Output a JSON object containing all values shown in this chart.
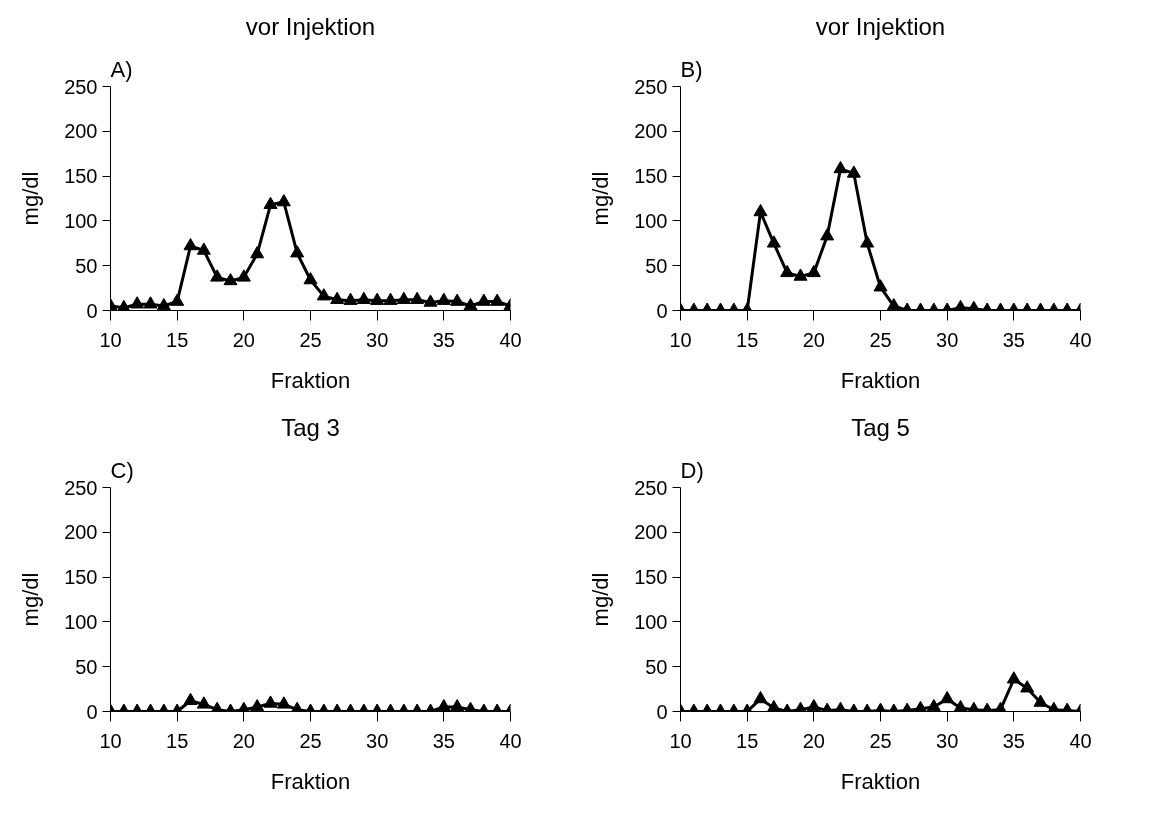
{
  "chart_data": [
    {
      "type": "line",
      "title": "vor Injektion",
      "annotations": [
        "A)"
      ],
      "xlabel": "Fraktion",
      "ylabel": "mg/dl",
      "marker": "triangle",
      "line_style": "solid",
      "color": "#000000",
      "xlim": [
        10,
        40
      ],
      "ylim": [
        0,
        250
      ],
      "xticks": [
        10,
        15,
        20,
        25,
        30,
        35,
        40
      ],
      "yticks": [
        0,
        50,
        100,
        150,
        200,
        250
      ],
      "x": [
        10,
        11,
        12,
        13,
        14,
        15,
        16,
        17,
        18,
        19,
        20,
        21,
        22,
        23,
        24,
        25,
        26,
        27,
        28,
        29,
        30,
        31,
        32,
        33,
        34,
        35,
        36,
        37,
        38,
        39,
        40
      ],
      "values": [
        5,
        3,
        7,
        7,
        5,
        10,
        72,
        67,
        37,
        33,
        37,
        63,
        118,
        121,
        64,
        34,
        16,
        12,
        11,
        12,
        11,
        11,
        12,
        12,
        9,
        11,
        10,
        5,
        10,
        10,
        5
      ]
    },
    {
      "type": "line",
      "title": "vor Injektion",
      "annotations": [
        "B)"
      ],
      "xlabel": "Fraktion",
      "ylabel": "mg/dl",
      "marker": "triangle",
      "line_style": "solid",
      "color": "#000000",
      "xlim": [
        10,
        40
      ],
      "ylim": [
        0,
        250
      ],
      "xticks": [
        10,
        15,
        20,
        25,
        30,
        35,
        40
      ],
      "yticks": [
        0,
        50,
        100,
        150,
        200,
        250
      ],
      "x": [
        10,
        11,
        12,
        13,
        14,
        15,
        16,
        17,
        18,
        19,
        20,
        21,
        22,
        23,
        24,
        25,
        26,
        27,
        28,
        29,
        30,
        31,
        32,
        33,
        34,
        35,
        36,
        37,
        38,
        39,
        40
      ],
      "values": [
        0,
        0,
        0,
        0,
        0,
        0,
        110,
        75,
        42,
        38,
        42,
        83,
        158,
        153,
        75,
        26,
        5,
        0,
        0,
        0,
        0,
        3,
        2,
        0,
        0,
        0,
        0,
        0,
        0,
        0,
        0
      ]
    },
    {
      "type": "line",
      "title": "Tag 3",
      "annotations": [
        "C)"
      ],
      "xlabel": "Fraktion",
      "ylabel": "mg/dl",
      "marker": "triangle",
      "line_style": "solid",
      "color": "#000000",
      "xlim": [
        10,
        40
      ],
      "ylim": [
        0,
        250
      ],
      "xticks": [
        10,
        15,
        20,
        25,
        30,
        35,
        40
      ],
      "yticks": [
        0,
        50,
        100,
        150,
        200,
        250
      ],
      "x": [
        10,
        11,
        12,
        13,
        14,
        15,
        16,
        17,
        18,
        19,
        20,
        21,
        22,
        23,
        24,
        25,
        26,
        27,
        28,
        29,
        30,
        31,
        32,
        33,
        34,
        35,
        36,
        37,
        38,
        39,
        40
      ],
      "values": [
        0,
        0,
        0,
        0,
        0,
        0,
        12,
        8,
        2,
        0,
        2,
        5,
        9,
        8,
        2,
        0,
        0,
        0,
        0,
        0,
        0,
        0,
        0,
        0,
        0,
        5,
        5,
        2,
        0,
        0,
        0
      ]
    },
    {
      "type": "line",
      "title": "Tag 5",
      "annotations": [
        "D)"
      ],
      "xlabel": "Fraktion",
      "ylabel": "mg/dl",
      "marker": "triangle",
      "line_style": "solid",
      "color": "#000000",
      "xlim": [
        10,
        40
      ],
      "ylim": [
        0,
        250
      ],
      "xticks": [
        10,
        15,
        20,
        25,
        30,
        35,
        40
      ],
      "yticks": [
        0,
        50,
        100,
        150,
        200,
        250
      ],
      "x": [
        10,
        11,
        12,
        13,
        14,
        15,
        16,
        17,
        18,
        19,
        20,
        21,
        22,
        23,
        24,
        25,
        26,
        27,
        28,
        29,
        30,
        31,
        32,
        33,
        34,
        35,
        36,
        37,
        38,
        39,
        40
      ],
      "values": [
        0,
        0,
        0,
        0,
        0,
        0,
        14,
        4,
        0,
        2,
        5,
        1,
        2,
        0,
        0,
        1,
        0,
        1,
        3,
        5,
        14,
        4,
        2,
        1,
        2,
        36,
        26,
        10,
        2,
        1,
        0
      ]
    }
  ]
}
